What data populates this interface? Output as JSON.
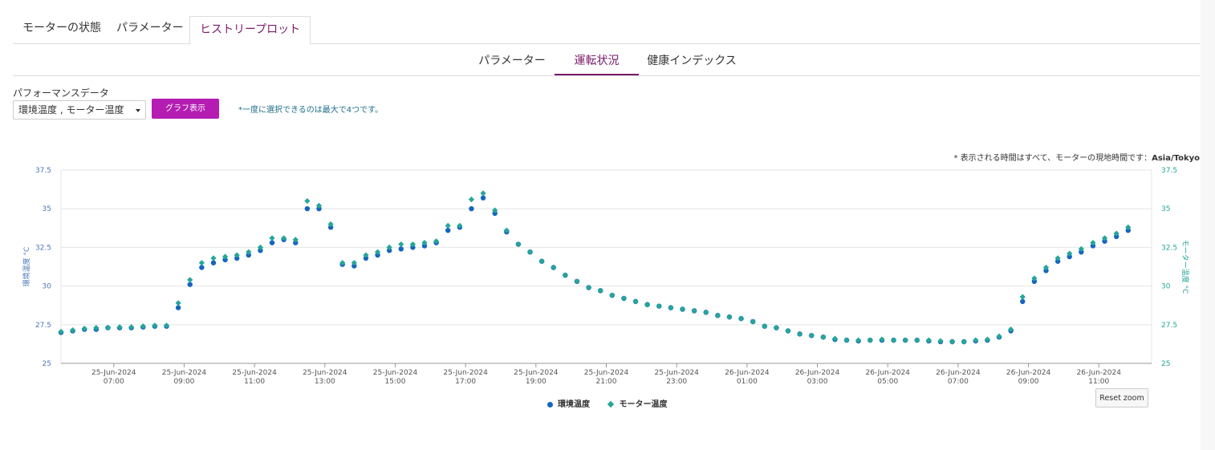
{
  "top_tabs": [
    "モーターの状態",
    "パラメーター",
    "ヒストリープロット"
  ],
  "sub_tabs": [
    "パラメーター",
    "運転状況",
    "健康インデックス"
  ],
  "performance": {
    "label": "パフォーマンスデータ",
    "selected": "環境温度 , モーター温度",
    "button": "グラフ表示",
    "note": "*一度に選択できるのは最大で4つです。"
  },
  "timezone_note": {
    "prefix": "* 表示される時間はすべて、モーターの現地時間です：",
    "zone": "Asia/Tokyo"
  },
  "reset_zoom": "Reset zoom",
  "colors": {
    "accent": "#b51cb2",
    "active_tab": "#7a1a6a",
    "ambient_series": "#1565c0",
    "motor_series": "#26a69a"
  },
  "chart_data": {
    "type": "scatter",
    "x_unit": "hour",
    "xlim": [
      "2024-06-25 05:30",
      "2024-06-26 12:30"
    ],
    "ylim": [
      25,
      37.5
    ],
    "y_ticks": [
      "25",
      "27.5",
      "30",
      "32.5",
      "35",
      "37.5"
    ],
    "ylabel_left": "環境温度 °C",
    "ylabel_right": "モーター温度 °C",
    "x_ticks": [
      {
        "date": "25-Jun-2024",
        "time": "07:00",
        "t": "2024-06-25 07:00"
      },
      {
        "date": "25-Jun-2024",
        "time": "09:00",
        "t": "2024-06-25 09:00"
      },
      {
        "date": "25-Jun-2024",
        "time": "11:00",
        "t": "2024-06-25 11:00"
      },
      {
        "date": "25-Jun-2024",
        "time": "13:00",
        "t": "2024-06-25 13:00"
      },
      {
        "date": "25-Jun-2024",
        "time": "15:00",
        "t": "2024-06-25 15:00"
      },
      {
        "date": "25-Jun-2024",
        "time": "17:00",
        "t": "2024-06-25 17:00"
      },
      {
        "date": "25-Jun-2024",
        "time": "19:00",
        "t": "2024-06-25 19:00"
      },
      {
        "date": "25-Jun-2024",
        "time": "21:00",
        "t": "2024-06-25 21:00"
      },
      {
        "date": "25-Jun-2024",
        "time": "23:00",
        "t": "2024-06-25 23:00"
      },
      {
        "date": "26-Jun-2024",
        "time": "01:00",
        "t": "2024-06-26 01:00"
      },
      {
        "date": "26-Jun-2024",
        "time": "03:00",
        "t": "2024-06-26 03:00"
      },
      {
        "date": "26-Jun-2024",
        "time": "05:00",
        "t": "2024-06-26 05:00"
      },
      {
        "date": "26-Jun-2024",
        "time": "07:00",
        "t": "2024-06-26 07:00"
      },
      {
        "date": "26-Jun-2024",
        "time": "09:00",
        "t": "2024-06-26 09:00"
      },
      {
        "date": "26-Jun-2024",
        "time": "11:00",
        "t": "2024-06-26 11:00"
      }
    ],
    "grid": true,
    "legend": "bottom-center",
    "series": [
      {
        "name": "環境温度",
        "marker": "circle",
        "points": [
          [
            "2024-06-25 05:30",
            27.0
          ],
          [
            "2024-06-25 05:50",
            27.1
          ],
          [
            "2024-06-25 06:10",
            27.2
          ],
          [
            "2024-06-25 06:30",
            27.2
          ],
          [
            "2024-06-25 06:50",
            27.3
          ],
          [
            "2024-06-25 07:10",
            27.3
          ],
          [
            "2024-06-25 07:30",
            27.3
          ],
          [
            "2024-06-25 07:50",
            27.35
          ],
          [
            "2024-06-25 08:10",
            27.4
          ],
          [
            "2024-06-25 08:30",
            27.4
          ],
          [
            "2024-06-25 08:50",
            28.6
          ],
          [
            "2024-06-25 09:10",
            30.1
          ],
          [
            "2024-06-25 09:30",
            31.2
          ],
          [
            "2024-06-25 09:50",
            31.5
          ],
          [
            "2024-06-25 10:10",
            31.7
          ],
          [
            "2024-06-25 10:30",
            31.8
          ],
          [
            "2024-06-25 10:50",
            32.0
          ],
          [
            "2024-06-25 11:10",
            32.3
          ],
          [
            "2024-06-25 11:30",
            32.8
          ],
          [
            "2024-06-25 11:50",
            33.0
          ],
          [
            "2024-06-25 12:10",
            32.8
          ],
          [
            "2024-06-25 12:30",
            35.0
          ],
          [
            "2024-06-25 12:50",
            35.0
          ],
          [
            "2024-06-25 13:10",
            33.8
          ],
          [
            "2024-06-25 13:30",
            31.4
          ],
          [
            "2024-06-25 13:50",
            31.3
          ],
          [
            "2024-06-25 14:10",
            31.8
          ],
          [
            "2024-06-25 14:30",
            32.0
          ],
          [
            "2024-06-25 14:50",
            32.3
          ],
          [
            "2024-06-25 15:10",
            32.4
          ],
          [
            "2024-06-25 15:30",
            32.5
          ],
          [
            "2024-06-25 15:50",
            32.6
          ],
          [
            "2024-06-25 16:10",
            32.8
          ],
          [
            "2024-06-25 16:30",
            33.6
          ],
          [
            "2024-06-25 16:50",
            33.8
          ],
          [
            "2024-06-25 17:10",
            35.0
          ],
          [
            "2024-06-25 17:30",
            35.7
          ],
          [
            "2024-06-25 17:50",
            34.7
          ],
          [
            "2024-06-25 18:10",
            33.5
          ],
          [
            "2024-06-25 18:30",
            32.7
          ],
          [
            "2024-06-25 18:50",
            32.2
          ],
          [
            "2024-06-25 19:10",
            31.6
          ],
          [
            "2024-06-25 19:30",
            31.2
          ],
          [
            "2024-06-25 19:50",
            30.7
          ],
          [
            "2024-06-25 20:10",
            30.3
          ],
          [
            "2024-06-25 20:30",
            29.9
          ],
          [
            "2024-06-25 20:50",
            29.7
          ],
          [
            "2024-06-25 21:10",
            29.4
          ],
          [
            "2024-06-25 21:30",
            29.2
          ],
          [
            "2024-06-25 21:50",
            29.0
          ],
          [
            "2024-06-25 22:10",
            28.8
          ],
          [
            "2024-06-25 22:30",
            28.7
          ],
          [
            "2024-06-25 22:50",
            28.6
          ],
          [
            "2024-06-25 23:10",
            28.5
          ],
          [
            "2024-06-25 23:30",
            28.4
          ],
          [
            "2024-06-25 23:50",
            28.3
          ],
          [
            "2024-06-26 00:10",
            28.1
          ],
          [
            "2024-06-26 00:30",
            28.0
          ],
          [
            "2024-06-26 00:50",
            27.9
          ],
          [
            "2024-06-26 01:10",
            27.7
          ],
          [
            "2024-06-26 01:30",
            27.4
          ],
          [
            "2024-06-26 01:50",
            27.3
          ],
          [
            "2024-06-26 02:10",
            27.1
          ],
          [
            "2024-06-26 02:30",
            26.9
          ],
          [
            "2024-06-26 02:50",
            26.8
          ],
          [
            "2024-06-26 03:10",
            26.7
          ],
          [
            "2024-06-26 03:30",
            26.55
          ],
          [
            "2024-06-26 03:50",
            26.5
          ],
          [
            "2024-06-26 04:10",
            26.45
          ],
          [
            "2024-06-26 04:30",
            26.5
          ],
          [
            "2024-06-26 04:50",
            26.5
          ],
          [
            "2024-06-26 05:10",
            26.5
          ],
          [
            "2024-06-26 05:30",
            26.5
          ],
          [
            "2024-06-26 05:50",
            26.5
          ],
          [
            "2024-06-26 06:10",
            26.45
          ],
          [
            "2024-06-26 06:30",
            26.4
          ],
          [
            "2024-06-26 06:50",
            26.4
          ],
          [
            "2024-06-26 07:10",
            26.4
          ],
          [
            "2024-06-26 07:30",
            26.45
          ],
          [
            "2024-06-26 07:50",
            26.5
          ],
          [
            "2024-06-26 08:10",
            26.7
          ],
          [
            "2024-06-26 08:30",
            27.1
          ],
          [
            "2024-06-26 08:50",
            29.0
          ],
          [
            "2024-06-26 09:10",
            30.3
          ],
          [
            "2024-06-26 09:30",
            31.0
          ],
          [
            "2024-06-26 09:50",
            31.6
          ],
          [
            "2024-06-26 10:10",
            31.9
          ],
          [
            "2024-06-26 10:30",
            32.2
          ],
          [
            "2024-06-26 10:50",
            32.6
          ],
          [
            "2024-06-26 11:10",
            32.9
          ],
          [
            "2024-06-26 11:30",
            33.2
          ],
          [
            "2024-06-26 11:50",
            33.6
          ]
        ]
      },
      {
        "name": "モーター温度",
        "marker": "diamond",
        "points": [
          [
            "2024-06-25 05:30",
            27.05
          ],
          [
            "2024-06-25 05:50",
            27.15
          ],
          [
            "2024-06-25 06:10",
            27.25
          ],
          [
            "2024-06-25 06:30",
            27.3
          ],
          [
            "2024-06-25 06:50",
            27.3
          ],
          [
            "2024-06-25 07:10",
            27.35
          ],
          [
            "2024-06-25 07:30",
            27.35
          ],
          [
            "2024-06-25 07:50",
            27.4
          ],
          [
            "2024-06-25 08:10",
            27.45
          ],
          [
            "2024-06-25 08:30",
            27.45
          ],
          [
            "2024-06-25 08:50",
            28.9
          ],
          [
            "2024-06-25 09:10",
            30.4
          ],
          [
            "2024-06-25 09:30",
            31.5
          ],
          [
            "2024-06-25 09:50",
            31.8
          ],
          [
            "2024-06-25 10:10",
            31.9
          ],
          [
            "2024-06-25 10:30",
            32.0
          ],
          [
            "2024-06-25 10:50",
            32.2
          ],
          [
            "2024-06-25 11:10",
            32.5
          ],
          [
            "2024-06-25 11:30",
            33.1
          ],
          [
            "2024-06-25 11:50",
            33.1
          ],
          [
            "2024-06-25 12:10",
            33.0
          ],
          [
            "2024-06-25 12:30",
            35.5
          ],
          [
            "2024-06-25 12:50",
            35.2
          ],
          [
            "2024-06-25 13:10",
            34.0
          ],
          [
            "2024-06-25 13:30",
            31.5
          ],
          [
            "2024-06-25 13:50",
            31.5
          ],
          [
            "2024-06-25 14:10",
            32.0
          ],
          [
            "2024-06-25 14:30",
            32.2
          ],
          [
            "2024-06-25 14:50",
            32.5
          ],
          [
            "2024-06-25 15:10",
            32.7
          ],
          [
            "2024-06-25 15:30",
            32.7
          ],
          [
            "2024-06-25 15:50",
            32.8
          ],
          [
            "2024-06-25 16:10",
            32.9
          ],
          [
            "2024-06-25 16:30",
            33.9
          ],
          [
            "2024-06-25 16:50",
            33.9
          ],
          [
            "2024-06-25 17:10",
            35.6
          ],
          [
            "2024-06-25 17:30",
            36.0
          ],
          [
            "2024-06-25 17:50",
            34.9
          ],
          [
            "2024-06-25 18:10",
            33.6
          ],
          [
            "2024-06-25 18:30",
            32.7
          ],
          [
            "2024-06-25 18:50",
            32.2
          ],
          [
            "2024-06-25 19:10",
            31.6
          ],
          [
            "2024-06-25 19:30",
            31.2
          ],
          [
            "2024-06-25 19:50",
            30.7
          ],
          [
            "2024-06-25 20:10",
            30.3
          ],
          [
            "2024-06-25 20:30",
            29.9
          ],
          [
            "2024-06-25 20:50",
            29.7
          ],
          [
            "2024-06-25 21:10",
            29.4
          ],
          [
            "2024-06-25 21:30",
            29.2
          ],
          [
            "2024-06-25 21:50",
            29.0
          ],
          [
            "2024-06-25 22:10",
            28.8
          ],
          [
            "2024-06-25 22:30",
            28.7
          ],
          [
            "2024-06-25 22:50",
            28.6
          ],
          [
            "2024-06-25 23:10",
            28.5
          ],
          [
            "2024-06-25 23:30",
            28.4
          ],
          [
            "2024-06-25 23:50",
            28.3
          ],
          [
            "2024-06-26 00:10",
            28.1
          ],
          [
            "2024-06-26 00:30",
            28.0
          ],
          [
            "2024-06-26 00:50",
            27.9
          ],
          [
            "2024-06-26 01:10",
            27.7
          ],
          [
            "2024-06-26 01:30",
            27.4
          ],
          [
            "2024-06-26 01:50",
            27.3
          ],
          [
            "2024-06-26 02:10",
            27.1
          ],
          [
            "2024-06-26 02:30",
            26.9
          ],
          [
            "2024-06-26 02:50",
            26.8
          ],
          [
            "2024-06-26 03:10",
            26.7
          ],
          [
            "2024-06-26 03:30",
            26.6
          ],
          [
            "2024-06-26 03:50",
            26.5
          ],
          [
            "2024-06-26 04:10",
            26.5
          ],
          [
            "2024-06-26 04:30",
            26.5
          ],
          [
            "2024-06-26 04:50",
            26.55
          ],
          [
            "2024-06-26 05:10",
            26.5
          ],
          [
            "2024-06-26 05:30",
            26.5
          ],
          [
            "2024-06-26 05:50",
            26.5
          ],
          [
            "2024-06-26 06:10",
            26.5
          ],
          [
            "2024-06-26 06:30",
            26.45
          ],
          [
            "2024-06-26 06:50",
            26.4
          ],
          [
            "2024-06-26 07:10",
            26.4
          ],
          [
            "2024-06-26 07:30",
            26.5
          ],
          [
            "2024-06-26 07:50",
            26.55
          ],
          [
            "2024-06-26 08:10",
            26.75
          ],
          [
            "2024-06-26 08:30",
            27.2
          ],
          [
            "2024-06-26 08:50",
            29.3
          ],
          [
            "2024-06-26 09:10",
            30.5
          ],
          [
            "2024-06-26 09:30",
            31.2
          ],
          [
            "2024-06-26 09:50",
            31.8
          ],
          [
            "2024-06-26 10:10",
            32.1
          ],
          [
            "2024-06-26 10:30",
            32.4
          ],
          [
            "2024-06-26 10:50",
            32.8
          ],
          [
            "2024-06-26 11:10",
            33.1
          ],
          [
            "2024-06-26 11:30",
            33.4
          ],
          [
            "2024-06-26 11:50",
            33.8
          ]
        ]
      }
    ]
  }
}
